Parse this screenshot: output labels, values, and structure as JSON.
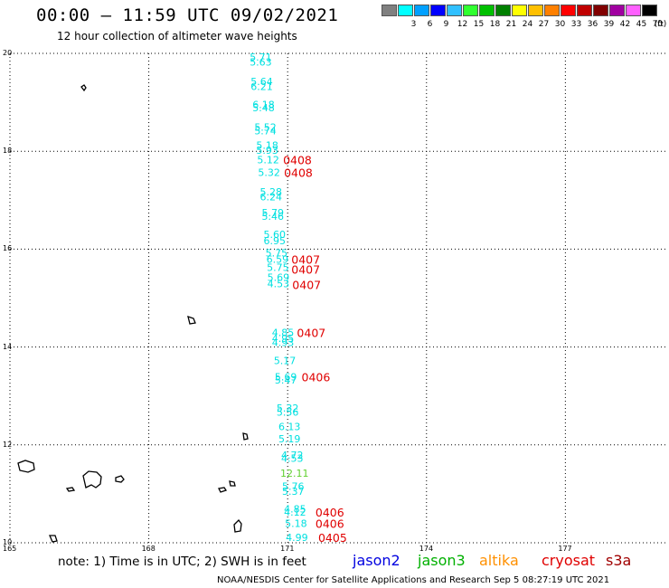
{
  "header": {
    "title": "00:00 – 11:59 UTC 09/02/2021",
    "subtitle": "12 hour collection of altimeter wave heights"
  },
  "scale": {
    "unit": "(ft)",
    "bins": [
      {
        "label": "",
        "color": "#808080"
      },
      {
        "label": "3",
        "color": "#00ffff"
      },
      {
        "label": "6",
        "color": "#00a0ff"
      },
      {
        "label": "9",
        "color": "#0000ff"
      },
      {
        "label": "12",
        "color": "#30c0ff"
      },
      {
        "label": "15",
        "color": "#30ff30"
      },
      {
        "label": "18",
        "color": "#00c000"
      },
      {
        "label": "21",
        "color": "#008000"
      },
      {
        "label": "24",
        "color": "#ffff00"
      },
      {
        "label": "27",
        "color": "#ffc000"
      },
      {
        "label": "30",
        "color": "#ff8000"
      },
      {
        "label": "33",
        "color": "#ff0000"
      },
      {
        "label": "36",
        "color": "#c00000"
      },
      {
        "label": "39",
        "color": "#800000"
      },
      {
        "label": "42",
        "color": "#a000a0"
      },
      {
        "label": "45",
        "color": "#ff60ff"
      },
      {
        "label": "70",
        "color": "#000000"
      }
    ]
  },
  "axes": {
    "lat_ticks": [
      "20",
      "18",
      "16",
      "14",
      "12",
      "10"
    ],
    "lon_ticks": [
      "165",
      "168",
      "171",
      "174",
      "177"
    ]
  },
  "map": {
    "lat_range": [
      10,
      20
    ],
    "lon_range": [
      165,
      179.2
    ],
    "land_color": "#000000",
    "grid": "dotted"
  },
  "observations": [
    {
      "lat": 19.85,
      "lon": 170.18,
      "text": "5.71",
      "color": "#00e0e0"
    },
    {
      "lat": 19.75,
      "lon": 170.18,
      "text": "5.63",
      "color": "#00e0e0"
    },
    {
      "lat": 19.35,
      "lon": 170.2,
      "text": "5.64",
      "color": "#00e0e0"
    },
    {
      "lat": 19.25,
      "lon": 170.2,
      "text": "6.21",
      "color": "#00e0e0"
    },
    {
      "lat": 18.88,
      "lon": 170.24,
      "text": "6.18",
      "color": "#00e0e0"
    },
    {
      "lat": 18.82,
      "lon": 170.24,
      "text": "5.48",
      "color": "#00e0e0"
    },
    {
      "lat": 18.42,
      "lon": 170.28,
      "text": "5.52",
      "color": "#00e0e0"
    },
    {
      "lat": 18.35,
      "lon": 170.28,
      "text": "5.74",
      "color": "#00e0e0"
    },
    {
      "lat": 18.05,
      "lon": 170.32,
      "text": "5.18",
      "color": "#00e0e0"
    },
    {
      "lat": 17.95,
      "lon": 170.32,
      "text": "5.93",
      "color": "#00e0e0"
    },
    {
      "lat": 17.75,
      "lon": 170.34,
      "text": "5.12",
      "color": "#00e0e0"
    },
    {
      "lat": 17.5,
      "lon": 170.36,
      "text": "5.32",
      "color": "#00e0e0"
    },
    {
      "lat": 17.1,
      "lon": 170.4,
      "text": "5.28",
      "color": "#00e0e0"
    },
    {
      "lat": 17.0,
      "lon": 170.4,
      "text": "6.24",
      "color": "#00e0e0"
    },
    {
      "lat": 16.67,
      "lon": 170.44,
      "text": "5.79",
      "color": "#00e0e0"
    },
    {
      "lat": 16.6,
      "lon": 170.44,
      "text": "5.46",
      "color": "#00e0e0"
    },
    {
      "lat": 16.23,
      "lon": 170.48,
      "text": "5.60",
      "color": "#00e0e0"
    },
    {
      "lat": 16.1,
      "lon": 170.48,
      "text": "6.95",
      "color": "#00e0e0"
    },
    {
      "lat": 15.85,
      "lon": 170.52,
      "text": "5.75",
      "color": "#00e0e0"
    },
    {
      "lat": 15.72,
      "lon": 170.54,
      "text": "6.59",
      "color": "#00e0e0"
    },
    {
      "lat": 15.55,
      "lon": 170.55,
      "text": "5.75",
      "color": "#00e0e0"
    },
    {
      "lat": 15.35,
      "lon": 170.56,
      "text": "5.69",
      "color": "#00e0e0"
    },
    {
      "lat": 15.22,
      "lon": 170.56,
      "text": "4.53",
      "color": "#00e0e0"
    },
    {
      "lat": 14.22,
      "lon": 170.66,
      "text": "4.85",
      "color": "#00e0e0"
    },
    {
      "lat": 14.1,
      "lon": 170.66,
      "text": "4.95",
      "color": "#00e0e0"
    },
    {
      "lat": 14.02,
      "lon": 170.66,
      "text": "4.93",
      "color": "#00e0e0"
    },
    {
      "lat": 13.65,
      "lon": 170.7,
      "text": "5.17",
      "color": "#00e0e0"
    },
    {
      "lat": 13.32,
      "lon": 170.72,
      "text": "5.69",
      "color": "#00e0e0"
    },
    {
      "lat": 13.25,
      "lon": 170.72,
      "text": "5.47",
      "color": "#00e0e0"
    },
    {
      "lat": 12.68,
      "lon": 170.76,
      "text": "5.32",
      "color": "#00e0e0"
    },
    {
      "lat": 12.6,
      "lon": 170.76,
      "text": "5.56",
      "color": "#00e0e0"
    },
    {
      "lat": 12.3,
      "lon": 170.8,
      "text": "6.13",
      "color": "#00e0e0"
    },
    {
      "lat": 12.05,
      "lon": 170.8,
      "text": "5.19",
      "color": "#00e0e0"
    },
    {
      "lat": 11.72,
      "lon": 170.86,
      "text": "4.72",
      "color": "#00e0e0"
    },
    {
      "lat": 11.65,
      "lon": 170.86,
      "text": "4.53",
      "color": "#00e0e0"
    },
    {
      "lat": 11.35,
      "lon": 170.84,
      "text": "12.11",
      "color": "#60d030"
    },
    {
      "lat": 11.08,
      "lon": 170.88,
      "text": "5.76",
      "color": "#00e0e0"
    },
    {
      "lat": 10.98,
      "lon": 170.88,
      "text": "5.37",
      "color": "#00e0e0"
    },
    {
      "lat": 10.62,
      "lon": 170.92,
      "text": "4.85",
      "color": "#00e0e0"
    },
    {
      "lat": 10.55,
      "lon": 170.92,
      "text": "4.12",
      "color": "#00e0e0"
    },
    {
      "lat": 10.32,
      "lon": 170.94,
      "text": "5.18",
      "color": "#00e0e0"
    },
    {
      "lat": 10.04,
      "lon": 170.96,
      "text": "4.99",
      "color": "#00e0e0"
    }
  ],
  "passes": [
    {
      "lat": 17.75,
      "lon": 170.9,
      "text": "0408",
      "color": "#e00000"
    },
    {
      "lat": 17.5,
      "lon": 170.92,
      "text": "0408",
      "color": "#e00000"
    },
    {
      "lat": 15.72,
      "lon": 171.08,
      "text": "0407",
      "color": "#e00000"
    },
    {
      "lat": 15.52,
      "lon": 171.08,
      "text": "0407",
      "color": "#e00000"
    },
    {
      "lat": 15.2,
      "lon": 171.1,
      "text": "0407",
      "color": "#e00000"
    },
    {
      "lat": 14.22,
      "lon": 171.2,
      "text": "0407",
      "color": "#e00000"
    },
    {
      "lat": 13.32,
      "lon": 171.3,
      "text": "0406",
      "color": "#e00000"
    },
    {
      "lat": 10.55,
      "lon": 171.6,
      "text": "0406",
      "color": "#e00000"
    },
    {
      "lat": 10.32,
      "lon": 171.6,
      "text": "0406",
      "color": "#e00000"
    },
    {
      "lat": 10.04,
      "lon": 171.66,
      "text": "0405",
      "color": "#e00000"
    }
  ],
  "footer": {
    "note": "note:  1) Time is in UTC;  2) SWH is in feet",
    "missions": [
      {
        "label": "jason2",
        "color": "#0000e0"
      },
      {
        "label": "jason3",
        "color": "#00b000"
      },
      {
        "label": "altika",
        "color": "#ff9000"
      },
      {
        "label": "cryosat",
        "color": "#e00000"
      },
      {
        "label": "s3a",
        "color": "#a00000"
      }
    ],
    "credit": "NOAA/NESDIS Center for Satellite Applications and Research     Sep  5 08:27:19 UTC 2021"
  }
}
